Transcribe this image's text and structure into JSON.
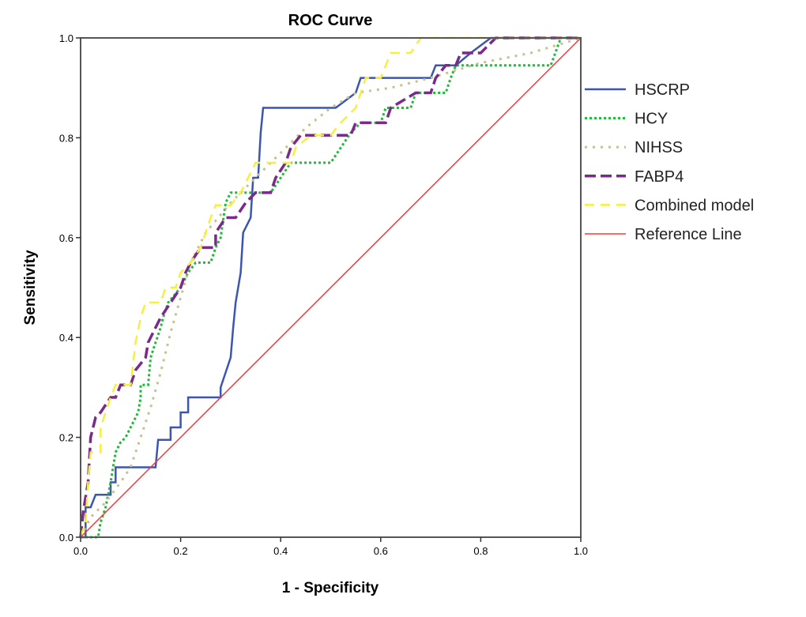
{
  "chart_data": {
    "type": "line",
    "title": "ROC Curve",
    "xlabel": "1 - Specificity",
    "ylabel": "Sensitivity",
    "xlim": [
      0,
      1
    ],
    "ylim": [
      0,
      1
    ],
    "xticks": [
      "0.0",
      "0.2",
      "0.4",
      "0.6",
      "0.8",
      "1.0"
    ],
    "yticks": [
      "0.0",
      "0.2",
      "0.4",
      "0.6",
      "0.8",
      "1.0"
    ],
    "legend_position": "right",
    "grid": false,
    "series": [
      {
        "name": "HSCRP",
        "color": "#3a56b0",
        "dash": "solid",
        "points": [
          [
            0,
            0
          ],
          [
            0.01,
            0
          ],
          [
            0.01,
            0.06
          ],
          [
            0.02,
            0.06
          ],
          [
            0.03,
            0.085
          ],
          [
            0.06,
            0.085
          ],
          [
            0.06,
            0.11
          ],
          [
            0.07,
            0.11
          ],
          [
            0.07,
            0.14
          ],
          [
            0.15,
            0.14
          ],
          [
            0.155,
            0.195
          ],
          [
            0.18,
            0.195
          ],
          [
            0.18,
            0.22
          ],
          [
            0.2,
            0.22
          ],
          [
            0.2,
            0.25
          ],
          [
            0.215,
            0.25
          ],
          [
            0.215,
            0.28
          ],
          [
            0.28,
            0.28
          ],
          [
            0.28,
            0.3
          ],
          [
            0.3,
            0.36
          ],
          [
            0.305,
            0.42
          ],
          [
            0.31,
            0.47
          ],
          [
            0.32,
            0.53
          ],
          [
            0.325,
            0.61
          ],
          [
            0.34,
            0.64
          ],
          [
            0.345,
            0.72
          ],
          [
            0.355,
            0.72
          ],
          [
            0.36,
            0.81
          ],
          [
            0.365,
            0.86
          ],
          [
            0.51,
            0.86
          ],
          [
            0.55,
            0.89
          ],
          [
            0.56,
            0.92
          ],
          [
            0.7,
            0.92
          ],
          [
            0.71,
            0.945
          ],
          [
            0.75,
            0.945
          ],
          [
            0.78,
            0.97
          ],
          [
            0.82,
            1
          ],
          [
            1,
            1
          ]
        ]
      },
      {
        "name": "HCY",
        "color": "#22b83a",
        "dash": "dotted",
        "points": [
          [
            0,
            0
          ],
          [
            0.035,
            0
          ],
          [
            0.04,
            0.03
          ],
          [
            0.05,
            0.06
          ],
          [
            0.06,
            0.11
          ],
          [
            0.065,
            0.14
          ],
          [
            0.07,
            0.17
          ],
          [
            0.08,
            0.19
          ],
          [
            0.09,
            0.2
          ],
          [
            0.1,
            0.22
          ],
          [
            0.115,
            0.25
          ],
          [
            0.12,
            0.28
          ],
          [
            0.12,
            0.305
          ],
          [
            0.135,
            0.305
          ],
          [
            0.14,
            0.36
          ],
          [
            0.15,
            0.39
          ],
          [
            0.16,
            0.42
          ],
          [
            0.165,
            0.44
          ],
          [
            0.175,
            0.47
          ],
          [
            0.2,
            0.5
          ],
          [
            0.215,
            0.53
          ],
          [
            0.23,
            0.55
          ],
          [
            0.26,
            0.55
          ],
          [
            0.27,
            0.58
          ],
          [
            0.28,
            0.6
          ],
          [
            0.29,
            0.67
          ],
          [
            0.3,
            0.69
          ],
          [
            0.38,
            0.69
          ],
          [
            0.4,
            0.72
          ],
          [
            0.42,
            0.75
          ],
          [
            0.5,
            0.75
          ],
          [
            0.52,
            0.78
          ],
          [
            0.54,
            0.81
          ],
          [
            0.56,
            0.83
          ],
          [
            0.6,
            0.83
          ],
          [
            0.61,
            0.86
          ],
          [
            0.66,
            0.86
          ],
          [
            0.67,
            0.89
          ],
          [
            0.73,
            0.89
          ],
          [
            0.74,
            0.92
          ],
          [
            0.75,
            0.945
          ],
          [
            0.94,
            0.945
          ],
          [
            0.96,
            1
          ],
          [
            1,
            1
          ]
        ]
      },
      {
        "name": "NIHSS",
        "color": "#c8c090",
        "dash": "dotted-wide",
        "points": [
          [
            0,
            0
          ],
          [
            0.02,
            0.04
          ],
          [
            0.05,
            0.07
          ],
          [
            0.08,
            0.11
          ],
          [
            0.1,
            0.14
          ],
          [
            0.12,
            0.2
          ],
          [
            0.14,
            0.26
          ],
          [
            0.16,
            0.33
          ],
          [
            0.18,
            0.41
          ],
          [
            0.2,
            0.48
          ],
          [
            0.22,
            0.55
          ],
          [
            0.25,
            0.61
          ],
          [
            0.3,
            0.67
          ],
          [
            0.35,
            0.72
          ],
          [
            0.4,
            0.77
          ],
          [
            0.45,
            0.82
          ],
          [
            0.5,
            0.86
          ],
          [
            0.55,
            0.89
          ],
          [
            0.62,
            0.9
          ],
          [
            0.7,
            0.92
          ],
          [
            0.8,
            0.95
          ],
          [
            0.9,
            0.97
          ],
          [
            1,
            1
          ]
        ]
      },
      {
        "name": "FABP4",
        "color": "#7a2a8a",
        "dash": "dashed",
        "points": [
          [
            0,
            0
          ],
          [
            0.005,
            0.05
          ],
          [
            0.01,
            0.08
          ],
          [
            0.015,
            0.11
          ],
          [
            0.02,
            0.2
          ],
          [
            0.03,
            0.24
          ],
          [
            0.04,
            0.25
          ],
          [
            0.06,
            0.28
          ],
          [
            0.07,
            0.28
          ],
          [
            0.08,
            0.305
          ],
          [
            0.1,
            0.305
          ],
          [
            0.11,
            0.335
          ],
          [
            0.13,
            0.36
          ],
          [
            0.135,
            0.39
          ],
          [
            0.15,
            0.42
          ],
          [
            0.16,
            0.44
          ],
          [
            0.18,
            0.47
          ],
          [
            0.2,
            0.5
          ],
          [
            0.21,
            0.53
          ],
          [
            0.22,
            0.55
          ],
          [
            0.24,
            0.58
          ],
          [
            0.27,
            0.58
          ],
          [
            0.27,
            0.61
          ],
          [
            0.29,
            0.64
          ],
          [
            0.31,
            0.64
          ],
          [
            0.33,
            0.67
          ],
          [
            0.35,
            0.69
          ],
          [
            0.38,
            0.69
          ],
          [
            0.39,
            0.72
          ],
          [
            0.41,
            0.75
          ],
          [
            0.42,
            0.78
          ],
          [
            0.44,
            0.805
          ],
          [
            0.54,
            0.805
          ],
          [
            0.55,
            0.83
          ],
          [
            0.61,
            0.83
          ],
          [
            0.62,
            0.86
          ],
          [
            0.67,
            0.89
          ],
          [
            0.7,
            0.89
          ],
          [
            0.71,
            0.92
          ],
          [
            0.73,
            0.945
          ],
          [
            0.75,
            0.945
          ],
          [
            0.76,
            0.97
          ],
          [
            0.8,
            0.97
          ],
          [
            0.83,
            1
          ],
          [
            1,
            1
          ]
        ]
      },
      {
        "name": "Combined model",
        "color": "#f5f040",
        "dash": "dashed-light",
        "points": [
          [
            0,
            0
          ],
          [
            0.01,
            0.03
          ],
          [
            0.015,
            0.11
          ],
          [
            0.02,
            0.17
          ],
          [
            0.04,
            0.17
          ],
          [
            0.04,
            0.22
          ],
          [
            0.05,
            0.25
          ],
          [
            0.06,
            0.28
          ],
          [
            0.07,
            0.305
          ],
          [
            0.1,
            0.305
          ],
          [
            0.11,
            0.39
          ],
          [
            0.12,
            0.44
          ],
          [
            0.13,
            0.47
          ],
          [
            0.16,
            0.47
          ],
          [
            0.17,
            0.5
          ],
          [
            0.19,
            0.5
          ],
          [
            0.2,
            0.53
          ],
          [
            0.22,
            0.55
          ],
          [
            0.24,
            0.58
          ],
          [
            0.25,
            0.61
          ],
          [
            0.26,
            0.64
          ],
          [
            0.27,
            0.665
          ],
          [
            0.3,
            0.665
          ],
          [
            0.32,
            0.69
          ],
          [
            0.35,
            0.75
          ],
          [
            0.42,
            0.75
          ],
          [
            0.43,
            0.78
          ],
          [
            0.46,
            0.805
          ],
          [
            0.5,
            0.805
          ],
          [
            0.52,
            0.83
          ],
          [
            0.55,
            0.86
          ],
          [
            0.57,
            0.92
          ],
          [
            0.6,
            0.92
          ],
          [
            0.61,
            0.945
          ],
          [
            0.62,
            0.97
          ],
          [
            0.66,
            0.97
          ],
          [
            0.68,
            1
          ],
          [
            1,
            1
          ]
        ]
      },
      {
        "name": "Reference Line",
        "color": "#f03c3c",
        "dash": "solid-thin",
        "points": [
          [
            0,
            0
          ],
          [
            1,
            1
          ]
        ]
      }
    ]
  }
}
